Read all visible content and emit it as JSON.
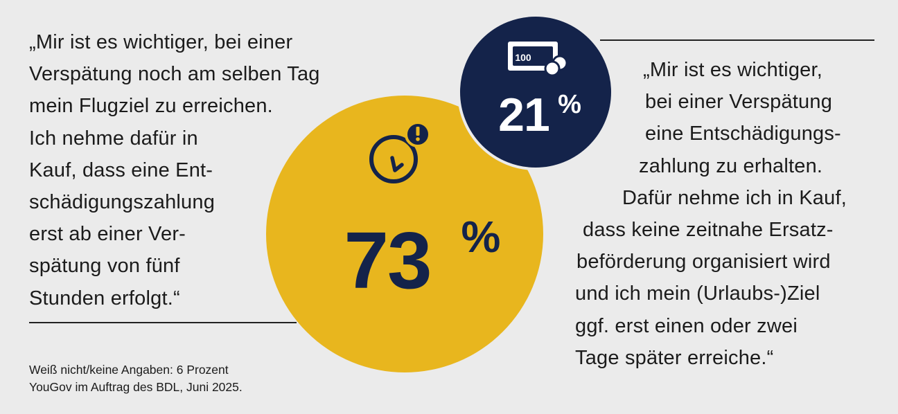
{
  "chart_data": {
    "type": "bubble",
    "series": [
      {
        "value": 73,
        "value_label": "73",
        "unit": "%",
        "color": "#e8b61e",
        "icon": "clock-alert-icon"
      },
      {
        "value": 21,
        "value_label": "21",
        "unit": "%",
        "color": "#14234a",
        "icon": "banknote-coins-icon"
      }
    ]
  },
  "quotes": {
    "left": [
      "„Mir ist es wichtiger, bei einer",
      "Verspätung noch am selben Tag",
      "mein Flugziel zu erreichen.",
      "Ich nehme dafür in",
      "Kauf, dass eine Ent-",
      "schädigungszahlung",
      "erst ab einer Ver-",
      "spätung von fünf",
      "Stunden erfolgt.“"
    ],
    "right": [
      "„Mir ist es wichtiger,",
      "bei einer Verspätung",
      "eine Entschädigungs-",
      "zahlung zu erhalten.",
      "Dafür nehme ich in Kauf,",
      "dass keine zeitnahe Ersatz-",
      "beförderung organisiert wird",
      "und ich mein (Urlaubs-)Ziel",
      "ggf. erst einen oder zwei",
      "Tage später erreiche.“"
    ]
  },
  "icon_labels": {
    "banknote": "100"
  },
  "footnote": {
    "line1": "Weiß nicht/keine Angaben: 6 Prozent",
    "line2": "YouGov im Auftrag des BDL, Juni 2025."
  },
  "colors": {
    "yellow": "#e8b61e",
    "navy": "#14234a",
    "background": "#ebebeb",
    "text": "#1b1b1b"
  }
}
